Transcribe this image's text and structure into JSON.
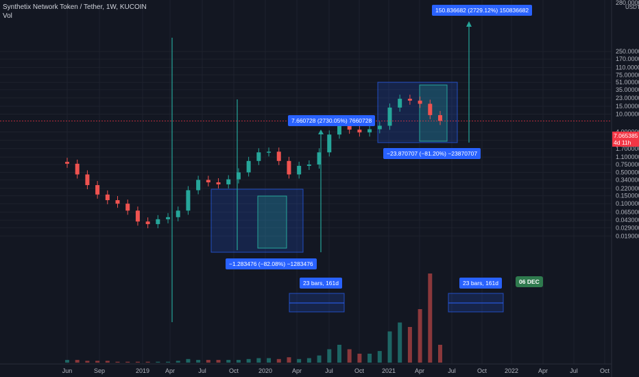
{
  "header": {
    "title": "Synthetix Network Token / Tether, 1W, KUCOIN",
    "volume_label": "Vol"
  },
  "price_axis": {
    "unit": "USDT",
    "ticks": [
      "250.000000",
      "170.000000",
      "110.000000",
      "75.000000",
      "51.000000",
      "35.000000",
      "23.000000",
      "15.000000",
      "10.000000",
      "4.000000",
      "2.600000",
      "1.700000",
      "1.100000",
      "0.750000",
      "0.500000",
      "0.340000",
      "0.220000",
      "0.150000",
      "0.100000",
      "0.065000",
      "0.043000",
      "0.029000",
      "0.019000"
    ],
    "top_label": "280.000000",
    "current_price": "7.065385",
    "countdown": "4d 11h"
  },
  "time_axis": {
    "ticks": [
      "Jun",
      "Sep",
      "2019",
      "Apr",
      "Jul",
      "Oct",
      "2020",
      "Apr",
      "Jul",
      "Oct",
      "2021",
      "Apr",
      "Jul",
      "Oct",
      "2022",
      "Apr",
      "Jul",
      "Oct"
    ]
  },
  "annotations": {
    "drop_2020": "−1.283476 (−82.08%) −1283476",
    "rise_2020": "7.660728 (2730.05%) 7660728",
    "drop_2021": "−23.870707 (−81.20%) −23870707",
    "target_2021": "150.836682 (2729.12%) 150836682",
    "bars_left": "23 bars, 161d",
    "bars_right": "23 bars, 161d",
    "date_flag": "06 DEC"
  },
  "colors": {
    "background": "#131722",
    "up": "#26a69a",
    "down": "#ef5350",
    "box_fill": "#2962ff",
    "label": "#2962ff",
    "price_tag": "#f23645",
    "flag": "#2f7a4e"
  },
  "chart_data": {
    "type": "candlestick",
    "scale": "log",
    "ylim": [
      0.015,
      280
    ],
    "x": [
      "2018-05",
      "2018-06",
      "2018-07",
      "2018-08",
      "2018-09",
      "2018-10",
      "2018-11",
      "2018-12",
      "2019-01",
      "2019-02",
      "2019-03",
      "2019-04",
      "2019-05",
      "2019-06",
      "2019-07",
      "2019-08",
      "2019-09",
      "2019-10",
      "2019-11",
      "2019-12",
      "2020-01",
      "2020-02",
      "2020-03",
      "2020-04",
      "2020-05",
      "2020-06",
      "2020-07",
      "2020-08",
      "2020-09",
      "2020-10",
      "2020-11",
      "2020-12",
      "2021-01",
      "2021-02",
      "2021-03",
      "2021-04",
      "2021-05",
      "2021-06"
    ],
    "close": [
      0.78,
      0.45,
      0.26,
      0.16,
      0.12,
      0.1,
      0.07,
      0.04,
      0.035,
      0.045,
      0.05,
      0.07,
      0.2,
      0.34,
      0.3,
      0.27,
      0.35,
      0.5,
      0.9,
      1.4,
      1.45,
      0.9,
      0.45,
      0.7,
      0.75,
      1.4,
      3.5,
      6.7,
      4.5,
      3.9,
      4.6,
      5.5,
      14.0,
      22.0,
      20.0,
      17.0,
      9.5,
      7.07
    ],
    "volume": [
      0.3,
      0.3,
      0.2,
      0.2,
      0.2,
      0.1,
      0.1,
      0.1,
      0.1,
      0.1,
      0.1,
      0.2,
      0.4,
      0.3,
      0.3,
      0.3,
      0.3,
      0.3,
      0.4,
      0.5,
      0.5,
      0.4,
      0.6,
      0.4,
      0.5,
      0.8,
      1.5,
      2.0,
      1.5,
      1.0,
      1.0,
      1.3,
      3.5,
      4.5,
      4.0,
      6.0,
      10.0,
      2.0
    ]
  }
}
